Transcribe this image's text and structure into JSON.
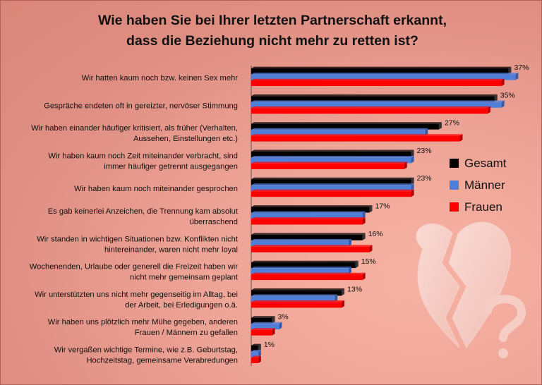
{
  "chart_data": {
    "type": "bar",
    "orientation": "horizontal",
    "title": [
      "Wie haben Sie bei Ihrer letzten Partnerschaft erkannt,",
      "dass die Beziehung nicht mehr zu retten ist?"
    ],
    "categories": [
      [
        "Wir hatten kaum noch bzw. keinen Sex mehr"
      ],
      [
        "Gespräche endeten oft in gereizter, nervöser Stimmung"
      ],
      [
        "Wir haben einander häufiger kritisiert, als früher (Verhalten,",
        "Aussehen, Einstellungen etc.)"
      ],
      [
        "Wir haben kaum noch Zeit miteinander verbracht, sind",
        "immer häufiger getrennt ausgegangen"
      ],
      [
        "Wir haben kaum noch miteinander gesprochen"
      ],
      [
        "Es gab keinerlei Anzeichen, die Trennung kam absolut",
        "überraschend"
      ],
      [
        "Wir standen in wichtigen Situationen bzw. Konflikten nicht",
        "hintereinander, waren nicht mehr loyal"
      ],
      [
        "Wochenenden, Urlaube oder generell die Freizeit haben wir",
        "nicht mehr gemeinsam geplant"
      ],
      [
        "Wir unterstützten uns nicht mehr gegenseitig im Alltag, bei",
        "der Arbeit, bei Erledigungen o.ä."
      ],
      [
        "Wir haben uns plötzlich mehr Mühe gegeben, anderen",
        "Frauen / Männern zu gefallen"
      ],
      [
        "Wir vergaßen wichtige Termine, wie z.B. Geburtstag,",
        "Hochzeitstag, gemeinsame Verabredungen"
      ]
    ],
    "series": [
      {
        "name": "Gesamt",
        "color": "#000000",
        "values": [
          37,
          35,
          27,
          23,
          23,
          17,
          16,
          15,
          13,
          3,
          1
        ]
      },
      {
        "name": "Männer",
        "color": "#4f7fd8",
        "values": [
          38,
          36,
          25,
          23,
          23,
          16,
          14,
          14,
          12,
          4,
          1
        ]
      },
      {
        "name": "Frauen",
        "color": "#ff0000",
        "values": [
          36,
          34,
          30,
          22,
          23,
          16,
          17,
          16,
          13,
          3,
          1
        ]
      }
    ],
    "data_labels": [
      "37%",
      "35%",
      "27%",
      "23%",
      "23%",
      "17%",
      "16%",
      "15%",
      "13%",
      "3%",
      "1%"
    ],
    "value_unit": "%",
    "xlim": [
      0,
      40
    ],
    "grid": false,
    "legend_position": "right"
  }
}
